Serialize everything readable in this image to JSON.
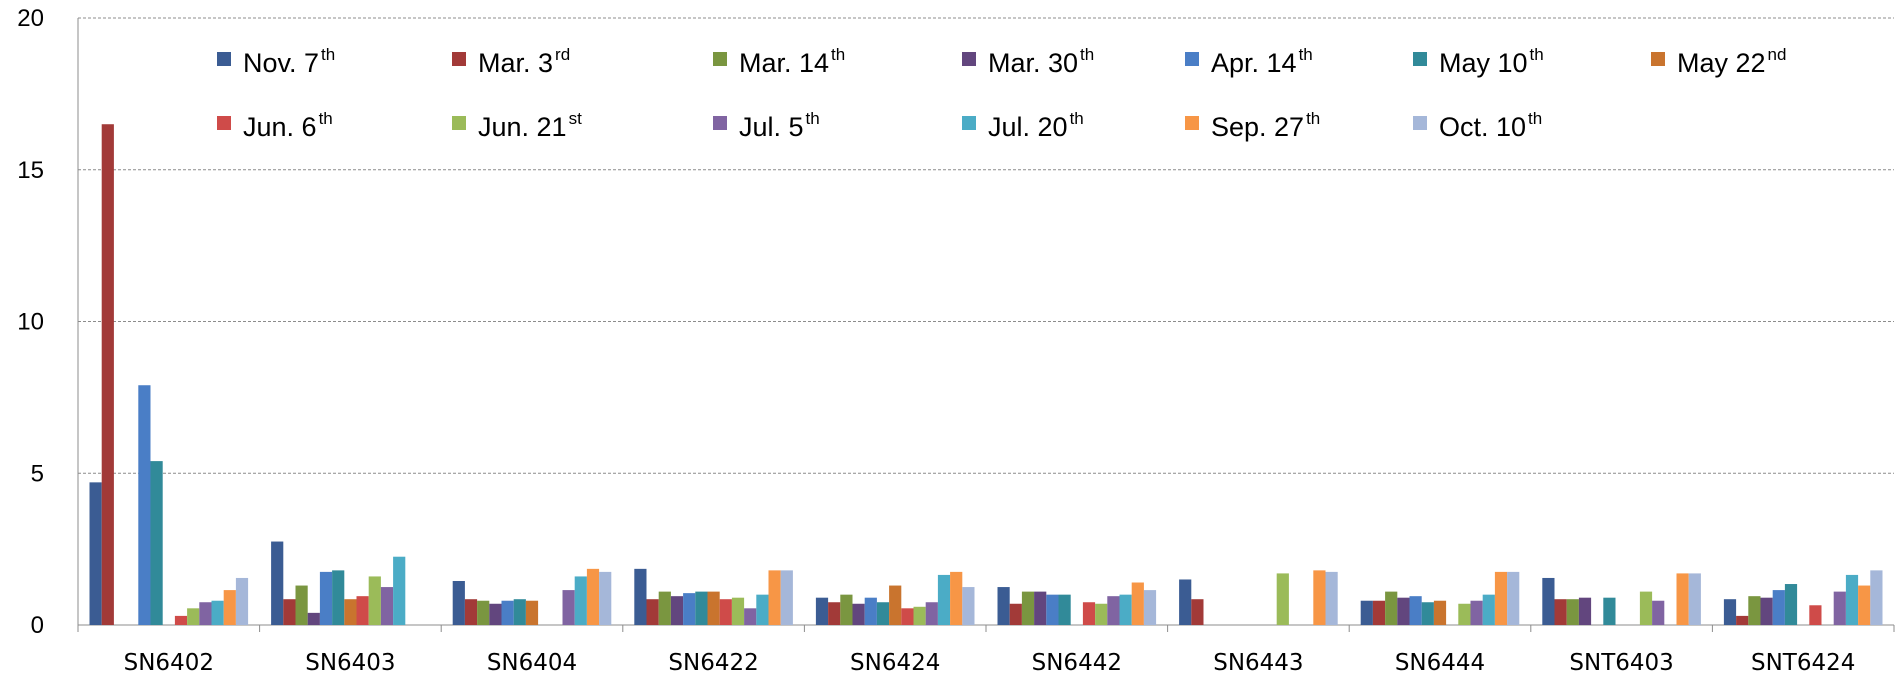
{
  "chart_data": {
    "type": "bar",
    "title": "",
    "xlabel": "",
    "ylabel": "",
    "ylim": [
      0,
      20
    ],
    "yticks": [
      0,
      5,
      10,
      15,
      20
    ],
    "grid": "horizontal dashed",
    "legend_position": "top",
    "categories": [
      "SN6402",
      "SN6403",
      "SN6404",
      "SN6422",
      "SN6424",
      "SN6442",
      "SN6443",
      "SN6444",
      "SNT6403",
      "SNT6424"
    ],
    "series": [
      {
        "name": "Nov. 7th",
        "label": "Nov. 7",
        "sup": "th",
        "color": "#3B5C93",
        "values": [
          4.7,
          2.75,
          1.45,
          1.85,
          0.9,
          1.25,
          1.5,
          0.8,
          1.55,
          0.85
        ]
      },
      {
        "name": "Mar. 3rd",
        "label": "Mar. 3",
        "sup": "rd",
        "color": "#A23A38",
        "values": [
          16.5,
          0.85,
          0.85,
          0.85,
          0.75,
          0.7,
          0.85,
          0.8,
          0.85,
          0.3
        ]
      },
      {
        "name": "Mar. 14th",
        "label": "Mar. 14",
        "sup": "th",
        "color": "#7A9640",
        "values": [
          0,
          1.3,
          0.8,
          1.1,
          1.0,
          1.1,
          0,
          1.1,
          0.85,
          0.95
        ]
      },
      {
        "name": "Mar. 30th",
        "label": "Mar. 30",
        "sup": "th",
        "color": "#62467E",
        "values": [
          0,
          0.4,
          0.7,
          0.95,
          0.7,
          1.1,
          0,
          0.9,
          0.9,
          0.9
        ]
      },
      {
        "name": "Apr. 14th",
        "label": "Apr. 14",
        "sup": "th",
        "color": "#4A7EC6",
        "values": [
          7.9,
          1.75,
          0.8,
          1.05,
          0.9,
          1.0,
          0,
          0.95,
          0,
          1.15
        ]
      },
      {
        "name": "May 10th",
        "label": "May 10",
        "sup": "th",
        "color": "#318A99",
        "values": [
          5.4,
          1.8,
          0.85,
          1.1,
          0.75,
          1.0,
          0,
          0.75,
          0.9,
          1.35
        ]
      },
      {
        "name": "May 22nd",
        "label": "May 22",
        "sup": "nd",
        "color": "#C9742E",
        "values": [
          0,
          0.85,
          0.8,
          1.1,
          1.3,
          0,
          0,
          0.8,
          0,
          0
        ]
      },
      {
        "name": "Jun. 6th",
        "label": "Jun. 6",
        "sup": "th",
        "color": "#CF4B49",
        "values": [
          0.3,
          0.95,
          0,
          0.85,
          0.55,
          0.75,
          0,
          0,
          0,
          0.65
        ]
      },
      {
        "name": "Jun. 21st",
        "label": "Jun. 21",
        "sup": "st",
        "color": "#9BBB59",
        "values": [
          0.55,
          1.6,
          0,
          0.9,
          0.6,
          0.7,
          1.7,
          0.7,
          1.1,
          0
        ]
      },
      {
        "name": "Jul. 5th",
        "label": "Jul. 5",
        "sup": "th",
        "color": "#8064A2",
        "values": [
          0.75,
          1.25,
          1.15,
          0.55,
          0.75,
          0.95,
          0,
          0.8,
          0.8,
          1.1
        ]
      },
      {
        "name": "Jul. 20th",
        "label": "Jul. 20",
        "sup": "th",
        "color": "#4BACC6",
        "values": [
          0.8,
          2.25,
          1.6,
          1.0,
          1.65,
          1.0,
          0,
          1.0,
          0,
          1.65
        ]
      },
      {
        "name": "Sep. 27th",
        "label": "Sep. 27",
        "sup": "th",
        "color": "#F79646",
        "values": [
          1.15,
          0,
          1.85,
          1.8,
          1.75,
          1.4,
          1.8,
          1.75,
          1.7,
          1.3
        ]
      },
      {
        "name": "Oct. 10th",
        "label": "Oct. 10",
        "sup": "th",
        "color": "#A5B7D9",
        "values": [
          1.55,
          0,
          1.75,
          1.8,
          1.25,
          1.15,
          1.75,
          1.75,
          1.7,
          1.8
        ]
      }
    ]
  }
}
